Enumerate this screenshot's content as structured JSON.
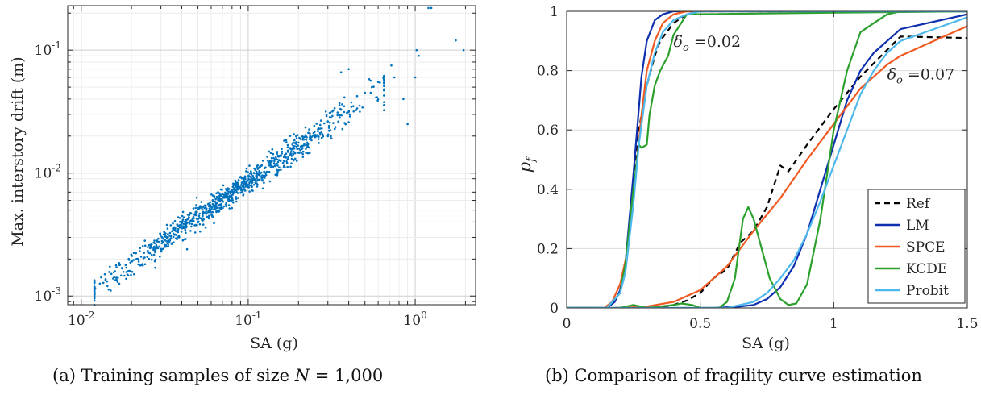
{
  "panels": {
    "a": {
      "caption": "(a) Training samples of size N = 1,000"
    },
    "b": {
      "caption": "(b) Comparison of fragility curve estimation"
    }
  },
  "chart_data": [
    {
      "type": "scatter",
      "xlabel": "SA (g)",
      "ylabel": "Max. interstory drift (m)",
      "xscale": "log",
      "yscale": "log",
      "xlim": [
        0.0083,
        2.3
      ],
      "ylim": [
        0.00085,
        0.23
      ],
      "xticks": [
        0.01,
        0.1,
        1
      ],
      "xtick_labels": [
        "10-2",
        "10-1",
        "100"
      ],
      "yticks": [
        0.001,
        0.01,
        0.1
      ],
      "ytick_labels": [
        "10-3",
        "10-2",
        "10-1"
      ],
      "grid": true,
      "color": "#0072bd",
      "n_points": 1000,
      "trend": {
        "description": "log-linear cloud",
        "x_range": [
          0.012,
          2.0
        ],
        "y_at_x_0.1": 0.0085,
        "slope_loglog": 0.95
      },
      "outliers": [
        [
          0.36,
          0.066
        ],
        [
          0.4,
          0.07
        ],
        [
          0.72,
          0.075
        ],
        [
          0.75,
          0.06
        ],
        [
          0.85,
          0.04
        ],
        [
          0.9,
          0.025
        ],
        [
          1.0,
          0.06
        ],
        [
          1.02,
          0.1
        ],
        [
          1.05,
          0.09
        ],
        [
          1.2,
          0.22
        ],
        [
          1.25,
          0.22
        ],
        [
          1.75,
          0.12
        ],
        [
          1.95,
          0.1
        ],
        [
          0.6,
          0.055
        ],
        [
          0.55,
          0.05
        ],
        [
          0.5,
          0.045
        ]
      ]
    },
    {
      "type": "line",
      "xlabel": "SA (g)",
      "ylabel": "p_f",
      "xlim": [
        0,
        1.5
      ],
      "ylim": [
        0,
        1
      ],
      "xticks": [
        0,
        0.5,
        1,
        1.5
      ],
      "xtick_labels": [
        "0",
        "0.5",
        "1",
        "1.5"
      ],
      "yticks": [
        0,
        0.2,
        0.4,
        0.6,
        0.8,
        1
      ],
      "ytick_labels": [
        "0",
        "0.2",
        "0.4",
        "0.6",
        "0.8",
        "1"
      ],
      "grid": true,
      "legend_position": "bottom-right",
      "annotations": [
        {
          "text": "δo =0.02",
          "x": 0.4,
          "y": 0.88
        },
        {
          "text": "δo =0.07",
          "x": 1.2,
          "y": 0.77
        }
      ],
      "series": [
        {
          "name": "Ref",
          "color": "#000000",
          "dash": true,
          "curves": [
            {
              "x": [
                0,
                0.15,
                0.2,
                0.22,
                0.25,
                0.27,
                0.3,
                0.33,
                0.35,
                0.4,
                0.45,
                0.5,
                1.5
              ],
              "y": [
                0,
                0,
                0.05,
                0.15,
                0.4,
                0.6,
                0.75,
                0.85,
                0.9,
                0.96,
                0.99,
                1,
                1
              ]
            },
            {
              "x": [
                0,
                0.3,
                0.35,
                0.4,
                0.45,
                0.5,
                0.55,
                0.6,
                0.65,
                0.7,
                0.75,
                0.8,
                0.83,
                0.9,
                1,
                1.1,
                1.2,
                1.25,
                1.5
              ],
              "y": [
                0,
                0,
                0.003,
                0.01,
                0.025,
                0.05,
                0.1,
                0.13,
                0.22,
                0.26,
                0.34,
                0.48,
                0.46,
                0.55,
                0.67,
                0.78,
                0.87,
                0.915,
                0.91
              ]
            }
          ]
        },
        {
          "name": "LM",
          "color": "#0e2fae",
          "dash": false,
          "curves": [
            {
              "x": [
                0,
                0.15,
                0.18,
                0.2,
                0.22,
                0.25,
                0.28,
                0.3,
                0.33,
                0.36,
                0.4,
                0.45,
                1.5
              ],
              "y": [
                0,
                0,
                0.02,
                0.06,
                0.15,
                0.45,
                0.78,
                0.9,
                0.97,
                0.99,
                1,
                1,
                1
              ]
            },
            {
              "x": [
                0,
                0.55,
                0.65,
                0.7,
                0.75,
                0.8,
                0.85,
                0.9,
                1,
                1.05,
                1.1,
                1.15,
                1.2,
                1.25,
                1.5
              ],
              "y": [
                0,
                0,
                0.005,
                0.01,
                0.03,
                0.07,
                0.14,
                0.25,
                0.55,
                0.7,
                0.8,
                0.86,
                0.9,
                0.94,
                0.99
              ]
            }
          ]
        },
        {
          "name": "SPCE",
          "color": "#f05a22",
          "dash": false,
          "curves": [
            {
              "x": [
                0,
                0.14,
                0.17,
                0.2,
                0.23,
                0.25,
                0.28,
                0.3,
                0.33,
                0.36,
                0.4,
                0.45,
                1.5
              ],
              "y": [
                0,
                0,
                0.02,
                0.08,
                0.2,
                0.38,
                0.65,
                0.8,
                0.9,
                0.96,
                0.99,
                1,
                1
              ]
            },
            {
              "x": [
                0,
                0.2,
                0.3,
                0.4,
                0.5,
                0.6,
                0.7,
                0.8,
                0.9,
                1,
                1.1,
                1.2,
                1.25,
                1.5
              ],
              "y": [
                0,
                0,
                0.005,
                0.02,
                0.06,
                0.14,
                0.26,
                0.37,
                0.5,
                0.62,
                0.74,
                0.82,
                0.85,
                0.95
              ]
            }
          ]
        },
        {
          "name": "KCDE",
          "color": "#2ca02c",
          "dash": false,
          "curves": [
            {
              "x": [
                0,
                0.15,
                0.2,
                0.22,
                0.25,
                0.27,
                0.28,
                0.3,
                0.31,
                0.33,
                0.35,
                0.38,
                0.4,
                0.45,
                1.5
              ],
              "y": [
                0,
                0,
                0.05,
                0.15,
                0.4,
                0.55,
                0.54,
                0.55,
                0.65,
                0.75,
                0.8,
                0.85,
                0.92,
                0.99,
                1
              ]
            },
            {
              "x": [
                0,
                0.2,
                0.25,
                0.3,
                0.35,
                0.4,
                0.43,
                0.47,
                0.5,
                0.57,
                0.6,
                0.63,
                0.66,
                0.68,
                0.7,
                0.73,
                0.76,
                0.8,
                0.83,
                0.86,
                0.9,
                0.95,
                1,
                1.05,
                1.1,
                1.15,
                1.2,
                1.25,
                1.5
              ],
              "y": [
                0,
                0,
                0.01,
                0,
                0.005,
                0.01,
                0.015,
                0.01,
                0,
                0,
                0.02,
                0.1,
                0.3,
                0.34,
                0.3,
                0.2,
                0.1,
                0.03,
                0.01,
                0.015,
                0.08,
                0.3,
                0.6,
                0.8,
                0.93,
                0.96,
                0.99,
                1,
                1
              ]
            }
          ]
        },
        {
          "name": "Probit",
          "color": "#4db8ec",
          "dash": false,
          "curves": [
            {
              "x": [
                0,
                0.15,
                0.2,
                0.22,
                0.25,
                0.27,
                0.3,
                0.33,
                0.36,
                0.4,
                0.45,
                0.5,
                1.5
              ],
              "y": [
                0,
                0,
                0.05,
                0.12,
                0.35,
                0.55,
                0.75,
                0.86,
                0.93,
                0.97,
                0.99,
                1,
                1
              ]
            },
            {
              "x": [
                0,
                0.6,
                0.7,
                0.75,
                0.8,
                0.85,
                0.9,
                0.95,
                1,
                1.05,
                1.1,
                1.15,
                1.2,
                1.25,
                1.5
              ],
              "y": [
                0,
                0,
                0.02,
                0.05,
                0.1,
                0.16,
                0.25,
                0.36,
                0.48,
                0.6,
                0.72,
                0.8,
                0.86,
                0.9,
                0.98
              ]
            }
          ]
        }
      ]
    }
  ]
}
